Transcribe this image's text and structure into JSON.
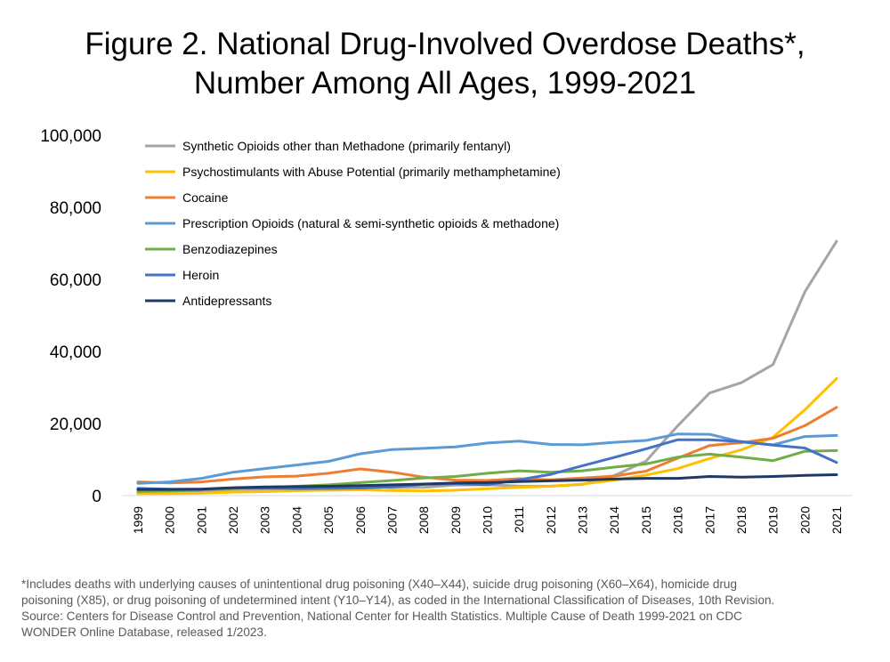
{
  "title_line1": "Figure 2. National Drug-Involved Overdose Deaths*,",
  "title_line2": "Number Among All Ages, 1999-2021",
  "footnote": [
    "*Includes deaths with underlying causes of unintentional drug poisoning (X40–X44), suicide drug poisoning (X60–X64), homicide drug",
    "poisoning (X85), or drug poisoning of undetermined intent (Y10–Y14), as coded in the International Classification of Diseases, 10th Revision.",
    "Source: Centers for Disease Control and Prevention, National Center for Health Statistics. Multiple Cause of Death 1999-2021 on CDC",
    "WONDER Online Database, released 1/2023."
  ],
  "chart_data": {
    "type": "line",
    "title": "Figure 2. National Drug-Involved Overdose Deaths*, Number Among All Ages, 1999-2021",
    "xlabel": "",
    "ylabel": "",
    "ylim": [
      0,
      100000
    ],
    "yticks": [
      0,
      20000,
      40000,
      60000,
      80000,
      100000
    ],
    "ytick_labels": [
      "0",
      "20,000",
      "40,000",
      "60,000",
      "80,000",
      "100,000"
    ],
    "grid": false,
    "legend_position": "top-left",
    "categories": [
      "1999",
      "2000",
      "2001",
      "2002",
      "2003",
      "2004",
      "2005",
      "2006",
      "2007",
      "2008",
      "2009",
      "2010",
      "2011",
      "2012",
      "2013",
      "2014",
      "2015",
      "2016",
      "2017",
      "2018",
      "2019",
      "2020",
      "2021"
    ],
    "series": [
      {
        "name": "Synthetic Opioids other than Methadone (primarily fentanyl)",
        "color": "#a5a5a5",
        "values": [
          730,
          782,
          957,
          1295,
          1400,
          1664,
          1742,
          2707,
          2213,
          2306,
          2946,
          3007,
          2666,
          2628,
          3105,
          5544,
          9580,
          19413,
          28466,
          31335,
          36359,
          56516,
          70601
        ]
      },
      {
        "name": "Psychostimulants with Abuse Potential (primarily methamphetamine)",
        "color": "#ffc000",
        "values": [
          547,
          578,
          650,
          1000,
          1100,
          1350,
          1500,
          1600,
          1400,
          1300,
          1500,
          1900,
          2300,
          2600,
          3200,
          4300,
          5700,
          7500,
          10300,
          12700,
          16200,
          23800,
          32500
        ]
      },
      {
        "name": "Cocaine",
        "color": "#ed7d31",
        "values": [
          3800,
          3500,
          3800,
          4600,
          5200,
          5400,
          6200,
          7400,
          6500,
          5100,
          4300,
          4200,
          4700,
          4400,
          4900,
          5400,
          6800,
          10400,
          13900,
          14700,
          15900,
          19400,
          24500
        ]
      },
      {
        "name": "Prescription Opioids (natural & semi-synthetic opioids & methadone)",
        "color": "#5b9bd5",
        "values": [
          3400,
          3800,
          4800,
          6500,
          7500,
          8500,
          9500,
          11600,
          12800,
          13100,
          13500,
          14600,
          15100,
          14200,
          14100,
          14800,
          15300,
          17100,
          17000,
          14900,
          14100,
          16400,
          16700
        ]
      },
      {
        "name": "Benzodiazepines",
        "color": "#70ad47",
        "values": [
          1100,
          1300,
          1600,
          2000,
          2300,
          2600,
          3000,
          3600,
          4200,
          4900,
          5300,
          6200,
          6900,
          6500,
          6900,
          7900,
          8800,
          10700,
          11500,
          10700,
          9700,
          12300,
          12500
        ]
      },
      {
        "name": "Heroin",
        "color": "#4472c4",
        "values": [
          2000,
          1800,
          1800,
          2100,
          2100,
          1900,
          2000,
          2100,
          2400,
          3100,
          3300,
          3000,
          4400,
          5900,
          8300,
          10600,
          13000,
          15500,
          15500,
          15000,
          14000,
          13200,
          9200
        ]
      },
      {
        "name": "Antidepressants",
        "color": "#203864",
        "values": [
          1700,
          1700,
          1800,
          2200,
          2400,
          2500,
          2600,
          2800,
          3000,
          3200,
          3500,
          3600,
          3900,
          4100,
          4300,
          4600,
          4800,
          4800,
          5300,
          5100,
          5300,
          5600,
          5800
        ]
      }
    ]
  }
}
